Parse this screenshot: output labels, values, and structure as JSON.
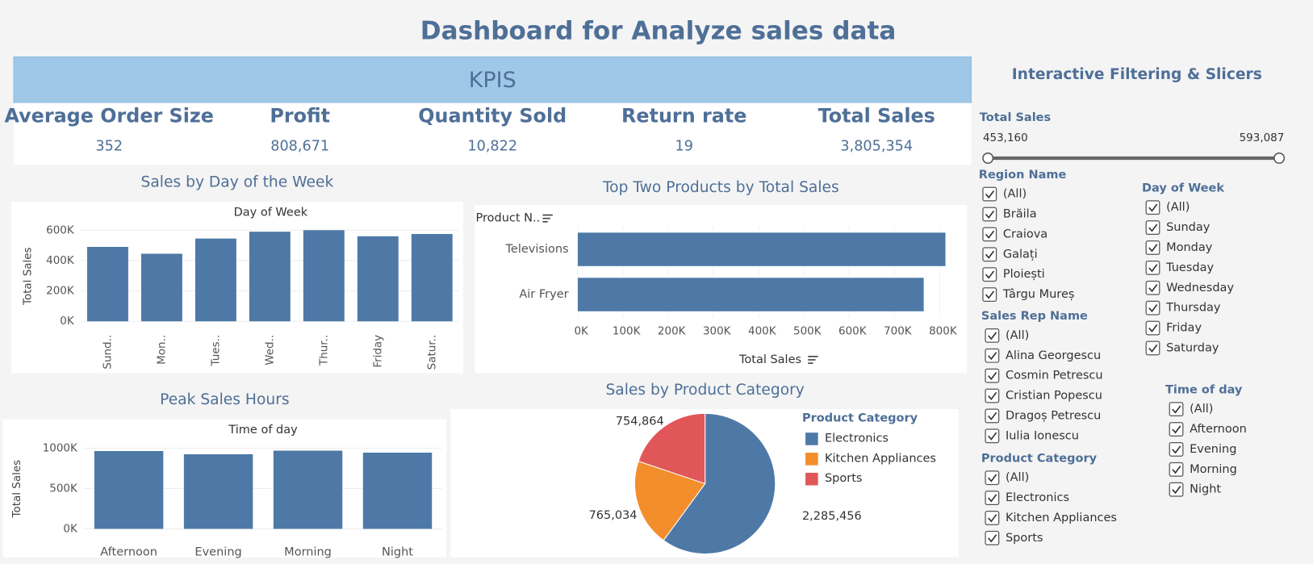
{
  "header": {
    "title": "Dashboard for Analyze sales data"
  },
  "kpis": {
    "title": "KPIS",
    "items": [
      {
        "label": "Average Order Size",
        "value": "352"
      },
      {
        "label": "Profit",
        "value": "808,671"
      },
      {
        "label": "Quantity Sold",
        "value": "10,822"
      },
      {
        "label": "Return rate",
        "value": "19"
      },
      {
        "label": "Total Sales",
        "value": "3,805,354"
      }
    ]
  },
  "chart_data": [
    {
      "type": "bar",
      "title": "Sales by Day of the Week",
      "x_header": "Day of Week",
      "ylabel": "Total Sales",
      "categories": [
        "Sund..",
        "Mon..",
        "Tues..",
        "Wed..",
        "Thur..",
        "Friday",
        "Satur.."
      ],
      "values": [
        490000,
        445000,
        545000,
        590000,
        600000,
        560000,
        575000
      ],
      "color": "#4e79a7",
      "ylim": [
        0,
        650000
      ],
      "yticks": [
        {
          "value": 0,
          "label": "0K"
        },
        {
          "value": 200000,
          "label": "200K"
        },
        {
          "value": 400000,
          "label": "400K"
        },
        {
          "value": 600000,
          "label": "600K"
        }
      ],
      "grid": true
    },
    {
      "type": "barh",
      "title": "Top Two Products by Total Sales",
      "category_header": "Product N..",
      "xlabel": "Total Sales",
      "categories": [
        "Televisions",
        "Air Fryer"
      ],
      "values": [
        813000,
        765000
      ],
      "color": "#4e79a7",
      "xlim": [
        0,
        820000
      ],
      "xticks": [
        {
          "value": 0,
          "label": "0K"
        },
        {
          "value": 100000,
          "label": "100K"
        },
        {
          "value": 200000,
          "label": "200K"
        },
        {
          "value": 300000,
          "label": "300K"
        },
        {
          "value": 400000,
          "label": "400K"
        },
        {
          "value": 500000,
          "label": "500K"
        },
        {
          "value": 600000,
          "label": "600K"
        },
        {
          "value": 700000,
          "label": "700K"
        },
        {
          "value": 800000,
          "label": "800K"
        }
      ],
      "grid": true
    },
    {
      "type": "bar",
      "title": "Peak Sales Hours",
      "x_header": "Time of day",
      "ylabel": "Total Sales",
      "categories": [
        "Afternoon",
        "Evening",
        "Morning",
        "Night"
      ],
      "values": [
        965000,
        925000,
        970000,
        945000
      ],
      "color": "#4e79a7",
      "ylim": [
        0,
        1100000
      ],
      "yticks": [
        {
          "value": 0,
          "label": "0K"
        },
        {
          "value": 500000,
          "label": "500K"
        },
        {
          "value": 1000000,
          "label": "1000K"
        }
      ],
      "grid": true
    },
    {
      "type": "pie",
      "title": "Sales by Product Category",
      "legend_title": "Product Category",
      "categories": [
        "Electronics",
        "Kitchen Appliances",
        "Sports"
      ],
      "values": [
        2285456,
        765034,
        754864
      ],
      "value_labels": [
        "2,285,456",
        "765,034",
        "754,864"
      ],
      "colors": [
        "#4e79a7",
        "#f28e2b",
        "#e15759"
      ]
    }
  ],
  "filters": {
    "title": "Interactive Filtering & Slicers",
    "total_sales": {
      "label": "Total Sales",
      "min": "453,160",
      "max": "593,087"
    },
    "groups": [
      {
        "label": "Region Name",
        "items": [
          "(All)",
          "Brăila",
          "Craiova",
          "Galați",
          "Ploiești",
          "Târgu Mureș"
        ]
      },
      {
        "label": "Sales Rep Name",
        "items": [
          "(All)",
          "Alina Georgescu",
          "Cosmin Petrescu",
          "Cristian Popescu",
          "Dragoș Petrescu",
          "Iulia Ionescu"
        ]
      },
      {
        "label": "Product Category",
        "items": [
          "(All)",
          "Electronics",
          "Kitchen Appliances",
          "Sports"
        ]
      },
      {
        "label": "Day of Week",
        "items": [
          "(All)",
          "Sunday",
          "Monday",
          "Tuesday",
          "Wednesday",
          "Thursday",
          "Friday",
          "Saturday"
        ]
      },
      {
        "label": "Time of day",
        "items": [
          "(All)",
          "Afternoon",
          "Evening",
          "Morning",
          "Night"
        ]
      }
    ]
  }
}
